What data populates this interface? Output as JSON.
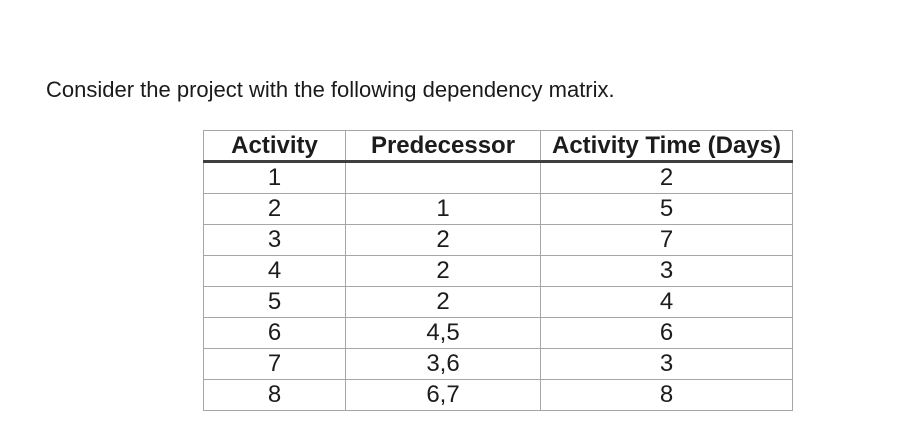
{
  "page": {
    "instruction": "Consider the project with the following dependency matrix."
  },
  "table": {
    "headers": [
      "Activity",
      "Predecessor",
      "Activity Time (Days)"
    ],
    "rows": [
      [
        "1",
        "",
        "2"
      ],
      [
        "2",
        "1",
        "5"
      ],
      [
        "3",
        "2",
        "7"
      ],
      [
        "4",
        "2",
        "3"
      ],
      [
        "5",
        "2",
        "4"
      ],
      [
        "6",
        "4,5",
        "6"
      ],
      [
        "7",
        "3,6",
        "3"
      ],
      [
        "8",
        "6,7",
        "8"
      ]
    ]
  },
  "colors": {
    "background": "#ffffff",
    "text": "#1a1a1a",
    "grid_border": "#a6a6a6",
    "header_rule": "#3f3f3f"
  }
}
